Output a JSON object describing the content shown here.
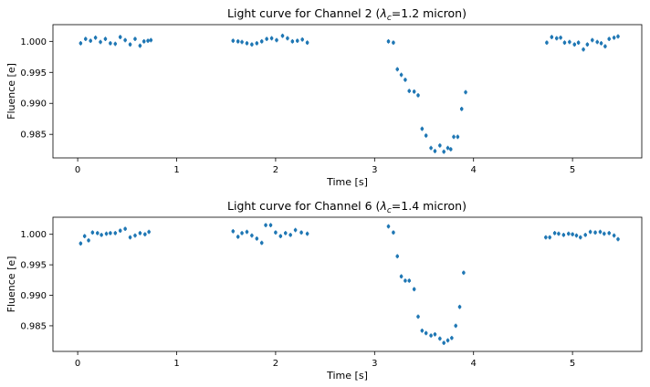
{
  "chart_data": [
    {
      "type": "scatter",
      "title_prefix": "Light curve for Channel 2 (",
      "title_math": "λ",
      "title_sub": "c",
      "title_suffix": "=1.2 micron)",
      "xlabel": "Time [s]",
      "ylabel": "Fluence [e]",
      "xlim": [
        -0.25,
        5.7
      ],
      "ylim": [
        0.9812,
        1.0027
      ],
      "xticks": [
        0,
        1,
        2,
        3,
        4,
        5
      ],
      "xtick_labels": [
        "0",
        "1",
        "2",
        "3",
        "4",
        "5"
      ],
      "yticks": [
        0.985,
        0.99,
        0.995,
        1.0
      ],
      "ytick_labels": [
        "0.985",
        "0.990",
        "0.995",
        "1.000"
      ],
      "color": "#1f77b4",
      "error": 0.00035,
      "points": [
        [
          0.03,
          0.9997
        ],
        [
          0.08,
          1.0004
        ],
        [
          0.13,
          1.0001
        ],
        [
          0.18,
          1.0006
        ],
        [
          0.23,
          0.9999
        ],
        [
          0.28,
          1.0004
        ],
        [
          0.33,
          0.9997
        ],
        [
          0.38,
          0.9996
        ],
        [
          0.43,
          1.0007
        ],
        [
          0.48,
          1.0002
        ],
        [
          0.53,
          0.9995
        ],
        [
          0.58,
          1.0004
        ],
        [
          0.63,
          0.9993
        ],
        [
          0.67,
          1.0
        ],
        [
          0.71,
          1.0001
        ],
        [
          0.74,
          1.0002
        ],
        [
          1.57,
          1.0001
        ],
        [
          1.62,
          1.0
        ],
        [
          1.66,
          0.9999
        ],
        [
          1.71,
          0.9997
        ],
        [
          1.76,
          0.9995
        ],
        [
          1.81,
          0.9997
        ],
        [
          1.86,
          1.0
        ],
        [
          1.91,
          1.0004
        ],
        [
          1.96,
          1.0005
        ],
        [
          2.01,
          1.0002
        ],
        [
          2.07,
          1.0009
        ],
        [
          2.12,
          1.0005
        ],
        [
          2.17,
          1.0
        ],
        [
          2.22,
          1.0001
        ],
        [
          2.27,
          1.0003
        ],
        [
          2.32,
          0.9998
        ],
        [
          3.14,
          1.0
        ],
        [
          3.19,
          0.9998
        ],
        [
          3.23,
          0.9955
        ],
        [
          3.27,
          0.9946
        ],
        [
          3.31,
          0.9938
        ],
        [
          3.35,
          0.992
        ],
        [
          3.4,
          0.9919
        ],
        [
          3.44,
          0.9913
        ],
        [
          3.48,
          0.9859
        ],
        [
          3.52,
          0.9848
        ],
        [
          3.57,
          0.9828
        ],
        [
          3.61,
          0.9823
        ],
        [
          3.66,
          0.9832
        ],
        [
          3.7,
          0.9822
        ],
        [
          3.74,
          0.9828
        ],
        [
          3.77,
          0.9826
        ],
        [
          3.8,
          0.9846
        ],
        [
          3.84,
          0.9846
        ],
        [
          3.88,
          0.9891
        ],
        [
          3.92,
          0.9918
        ],
        [
          4.74,
          0.9998
        ],
        [
          4.79,
          1.0007
        ],
        [
          4.84,
          1.0005
        ],
        [
          4.88,
          1.0006
        ],
        [
          4.92,
          0.9998
        ],
        [
          4.97,
          0.9999
        ],
        [
          5.02,
          0.9995
        ],
        [
          5.06,
          0.9998
        ],
        [
          5.11,
          0.9987
        ],
        [
          5.15,
          0.9995
        ],
        [
          5.2,
          1.0002
        ],
        [
          5.25,
          0.9999
        ],
        [
          5.29,
          0.9997
        ],
        [
          5.33,
          0.9992
        ],
        [
          5.37,
          1.0004
        ],
        [
          5.42,
          1.0006
        ],
        [
          5.46,
          1.0008
        ]
      ]
    },
    {
      "type": "scatter",
      "title_prefix": "Light curve for Channel 6 (",
      "title_math": "λ",
      "title_sub": "c",
      "title_suffix": "=1.4 micron)",
      "xlabel": "Time [s]",
      "ylabel": "Fluence [e]",
      "xlim": [
        -0.25,
        5.7
      ],
      "ylim": [
        0.9808,
        1.0028
      ],
      "xticks": [
        0,
        1,
        2,
        3,
        4,
        5
      ],
      "xtick_labels": [
        "0",
        "1",
        "2",
        "3",
        "4",
        "5"
      ],
      "yticks": [
        0.985,
        0.99,
        0.995,
        1.0
      ],
      "ytick_labels": [
        "0.985",
        "0.990",
        "0.995",
        "1.000"
      ],
      "color": "#1f77b4",
      "error": 0.00035,
      "points": [
        [
          0.03,
          0.9985
        ],
        [
          0.07,
          0.9997
        ],
        [
          0.11,
          0.999
        ],
        [
          0.15,
          1.0003
        ],
        [
          0.2,
          1.0002
        ],
        [
          0.24,
          0.9999
        ],
        [
          0.29,
          1.0001
        ],
        [
          0.33,
          1.0002
        ],
        [
          0.38,
          1.0002
        ],
        [
          0.43,
          1.0006
        ],
        [
          0.48,
          1.0009
        ],
        [
          0.53,
          0.9995
        ],
        [
          0.58,
          0.9998
        ],
        [
          0.63,
          1.0002
        ],
        [
          0.68,
          1.0
        ],
        [
          0.72,
          1.0004
        ],
        [
          1.57,
          1.0005
        ],
        [
          1.62,
          0.9996
        ],
        [
          1.66,
          1.0002
        ],
        [
          1.71,
          1.0004
        ],
        [
          1.76,
          0.9998
        ],
        [
          1.81,
          0.9993
        ],
        [
          1.86,
          0.9986
        ],
        [
          1.9,
          1.0015
        ],
        [
          1.95,
          1.0015
        ],
        [
          2.0,
          1.0003
        ],
        [
          2.05,
          0.9997
        ],
        [
          2.1,
          1.0002
        ],
        [
          2.15,
          0.9999
        ],
        [
          2.2,
          1.0007
        ],
        [
          2.26,
          1.0003
        ],
        [
          2.32,
          1.0001
        ],
        [
          3.14,
          1.0013
        ],
        [
          3.19,
          1.0003
        ],
        [
          3.23,
          0.9964
        ],
        [
          3.27,
          0.9931
        ],
        [
          3.31,
          0.9924
        ],
        [
          3.35,
          0.9924
        ],
        [
          3.4,
          0.991
        ],
        [
          3.44,
          0.9865
        ],
        [
          3.48,
          0.9842
        ],
        [
          3.52,
          0.9838
        ],
        [
          3.57,
          0.9834
        ],
        [
          3.61,
          0.9836
        ],
        [
          3.66,
          0.9829
        ],
        [
          3.7,
          0.9822
        ],
        [
          3.74,
          0.9826
        ],
        [
          3.78,
          0.983
        ],
        [
          3.82,
          0.985
        ],
        [
          3.86,
          0.9881
        ],
        [
          3.9,
          0.9937
        ],
        [
          4.73,
          0.9995
        ],
        [
          4.77,
          0.9995
        ],
        [
          4.82,
          1.0002
        ],
        [
          4.86,
          1.0001
        ],
        [
          4.91,
          0.9999
        ],
        [
          4.96,
          1.0001
        ],
        [
          5.0,
          1.0
        ],
        [
          5.04,
          0.9998
        ],
        [
          5.08,
          0.9995
        ],
        [
          5.13,
          0.9999
        ],
        [
          5.18,
          1.0004
        ],
        [
          5.23,
          1.0003
        ],
        [
          5.28,
          1.0004
        ],
        [
          5.32,
          1.0001
        ],
        [
          5.37,
          1.0002
        ],
        [
          5.42,
          0.9998
        ],
        [
          5.46,
          0.9992
        ]
      ]
    }
  ]
}
